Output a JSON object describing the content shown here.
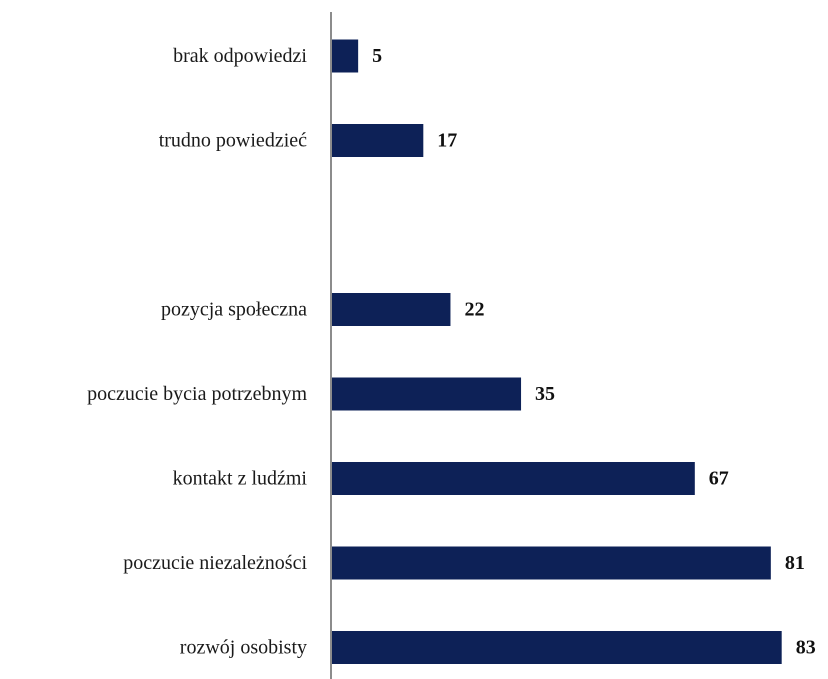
{
  "chart_data": {
    "type": "bar",
    "orientation": "horizontal",
    "categories": [
      "brak odpowiedzi",
      "trudno powiedzieć",
      "",
      "pozycja społeczna",
      "poczucie bycia potrzebnym",
      "kontakt z ludźmi",
      "poczucie niezależności",
      "rozwój osobisty"
    ],
    "values": [
      5,
      17,
      null,
      22,
      35,
      67,
      81,
      83
    ],
    "value_labels": [
      "5",
      "17",
      "",
      "22",
      "35",
      "67",
      "81",
      "83"
    ],
    "title": "",
    "xlabel": "",
    "ylabel": "",
    "xlim": [
      0,
      83
    ],
    "grid": false,
    "legend": "none",
    "bar_color": "#0d2157",
    "axis_color": "#8c8c8c"
  }
}
